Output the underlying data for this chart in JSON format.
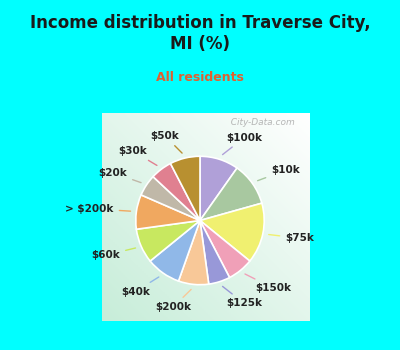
{
  "title": "Income distribution in Traverse City,\nMI (%)",
  "subtitle": "All residents",
  "title_color": "#1a1a1a",
  "subtitle_color": "#e06030",
  "background_color": "#00FFFF",
  "labels": [
    "$100k",
    "$10k",
    "$75k",
    "$150k",
    "$125k",
    "$200k",
    "$40k",
    "$60k",
    "> $200k",
    "$20k",
    "$30k",
    "$50k"
  ],
  "values": [
    9,
    10,
    14,
    6,
    5,
    7,
    8,
    8,
    8,
    5,
    5,
    7
  ],
  "colors": [
    "#b0a0d8",
    "#a8c8a0",
    "#f0f070",
    "#f0a0b8",
    "#9898d8",
    "#f8c898",
    "#90b8e8",
    "#c8e860",
    "#f0a860",
    "#c0b8a8",
    "#e08090",
    "#b89030"
  ],
  "watermark": "  City-Data.com",
  "label_fontsize": 7.5,
  "title_fontsize": 12,
  "subtitle_fontsize": 9
}
